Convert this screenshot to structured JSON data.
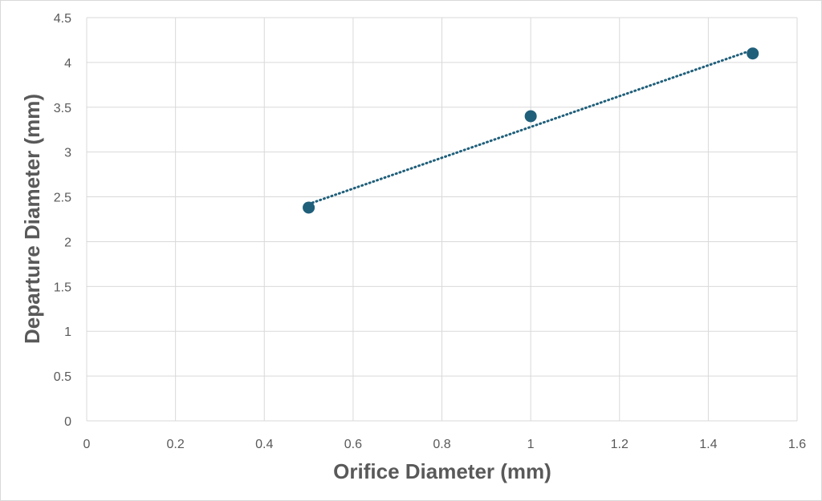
{
  "chart_data": {
    "type": "scatter",
    "title": "",
    "xlabel": "Orifice Diameter (mm)",
    "ylabel": "Departure Diameter (mm)",
    "xlim": [
      0,
      1.6
    ],
    "ylim": [
      0,
      4.5
    ],
    "x_ticks": [
      "0",
      "0.2",
      "0.4",
      "0.6",
      "0.8",
      "1",
      "1.2",
      "1.4",
      "1.6"
    ],
    "y_ticks": [
      "0",
      "0.5",
      "1",
      "1.5",
      "2",
      "2.5",
      "3",
      "3.5",
      "4",
      "4.5"
    ],
    "grid": true,
    "legend": "none",
    "series": [
      {
        "x": [
          0.5,
          1.0,
          1.5
        ],
        "y": [
          2.38,
          3.4,
          4.1
        ],
        "marker_color": "#1f5f7a"
      }
    ],
    "trendline": {
      "kind": "linear",
      "style": "dotted",
      "color": "#1f5f7a",
      "x": [
        0.5,
        1.5
      ],
      "y": [
        2.42,
        4.14
      ]
    },
    "grid_color": "#d9d9d9"
  }
}
